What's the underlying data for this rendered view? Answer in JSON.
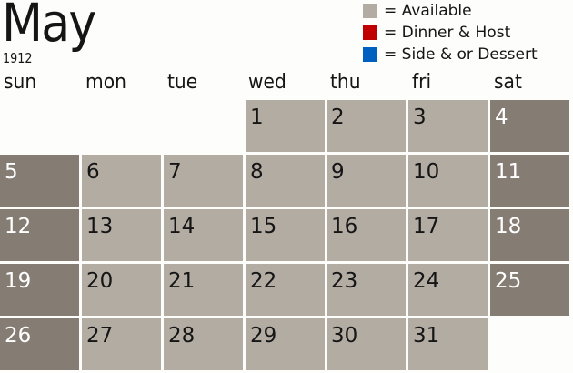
{
  "header": {
    "month": "May",
    "year": "1912"
  },
  "legend": [
    {
      "label": "= Available",
      "color": "#b3aca3"
    },
    {
      "label": "= Dinner & Host",
      "color": "#c00000"
    },
    {
      "label": "= Side & or Dessert",
      "color": "#0060c0"
    }
  ],
  "weekdays": [
    "sun",
    "mon",
    "tue",
    "wed",
    "thu",
    "fri",
    "sat"
  ],
  "calendar": {
    "first_weekday_index": 3,
    "days_in_month": 31,
    "colors": {
      "weekday": "#b3aca3",
      "weekend": "#857d73"
    }
  }
}
